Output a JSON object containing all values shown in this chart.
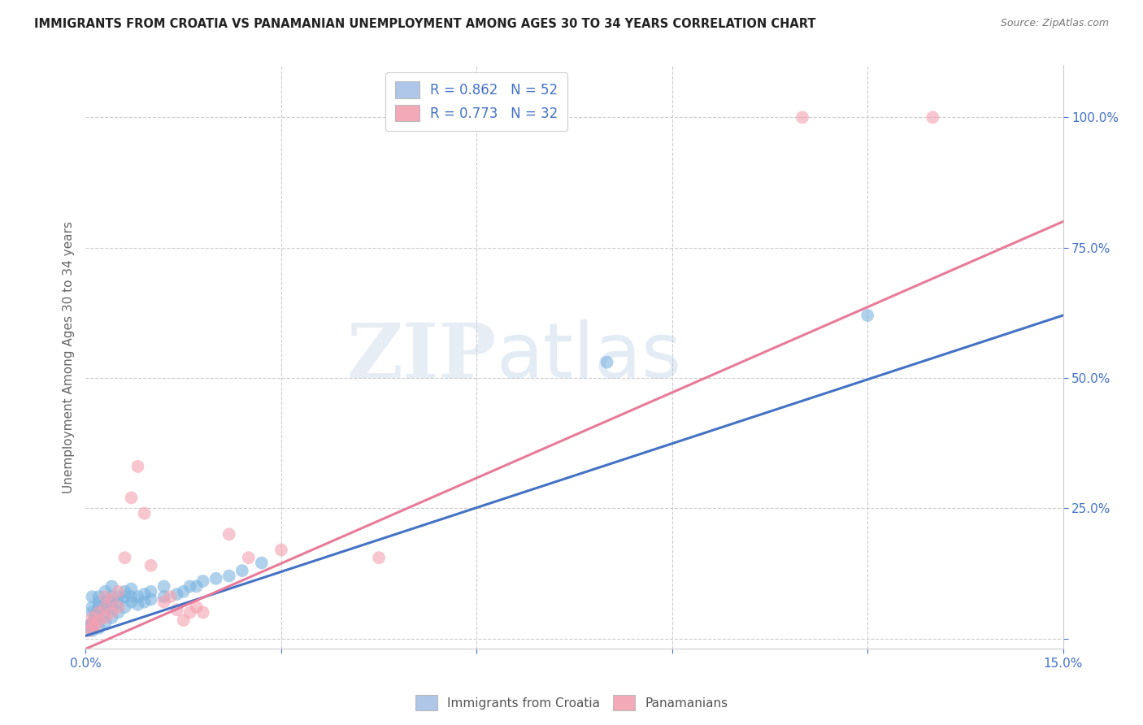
{
  "title": "IMMIGRANTS FROM CROATIA VS PANAMANIAN UNEMPLOYMENT AMONG AGES 30 TO 34 YEARS CORRELATION CHART",
  "source": "Source: ZipAtlas.com",
  "ylabel": "Unemployment Among Ages 30 to 34 years",
  "legend_entries": [
    {
      "label": "R = 0.862   N = 52",
      "color": "#aec6e8"
    },
    {
      "label": "R = 0.773   N = 32",
      "color": "#f4a9b8"
    }
  ],
  "watermark_zip": "ZIP",
  "watermark_atlas": "atlas",
  "blue_scatter": [
    [
      0.0005,
      0.02
    ],
    [
      0.0005,
      0.025
    ],
    [
      0.001,
      0.015
    ],
    [
      0.001,
      0.03
    ],
    [
      0.001,
      0.05
    ],
    [
      0.001,
      0.06
    ],
    [
      0.001,
      0.08
    ],
    [
      0.0015,
      0.035
    ],
    [
      0.0015,
      0.045
    ],
    [
      0.002,
      0.02
    ],
    [
      0.002,
      0.04
    ],
    [
      0.002,
      0.06
    ],
    [
      0.002,
      0.07
    ],
    [
      0.002,
      0.08
    ],
    [
      0.003,
      0.03
    ],
    [
      0.003,
      0.05
    ],
    [
      0.003,
      0.06
    ],
    [
      0.003,
      0.07
    ],
    [
      0.003,
      0.09
    ],
    [
      0.004,
      0.04
    ],
    [
      0.004,
      0.06
    ],
    [
      0.004,
      0.07
    ],
    [
      0.004,
      0.08
    ],
    [
      0.004,
      0.1
    ],
    [
      0.005,
      0.05
    ],
    [
      0.005,
      0.07
    ],
    [
      0.005,
      0.08
    ],
    [
      0.006,
      0.06
    ],
    [
      0.006,
      0.08
    ],
    [
      0.006,
      0.09
    ],
    [
      0.007,
      0.07
    ],
    [
      0.007,
      0.08
    ],
    [
      0.007,
      0.095
    ],
    [
      0.008,
      0.065
    ],
    [
      0.008,
      0.08
    ],
    [
      0.009,
      0.07
    ],
    [
      0.009,
      0.085
    ],
    [
      0.01,
      0.075
    ],
    [
      0.01,
      0.09
    ],
    [
      0.012,
      0.08
    ],
    [
      0.012,
      0.1
    ],
    [
      0.014,
      0.085
    ],
    [
      0.015,
      0.09
    ],
    [
      0.016,
      0.1
    ],
    [
      0.017,
      0.1
    ],
    [
      0.018,
      0.11
    ],
    [
      0.02,
      0.115
    ],
    [
      0.022,
      0.12
    ],
    [
      0.024,
      0.13
    ],
    [
      0.027,
      0.145
    ],
    [
      0.08,
      0.53
    ],
    [
      0.12,
      0.62
    ]
  ],
  "pink_scatter": [
    [
      0.0005,
      0.015
    ],
    [
      0.001,
      0.02
    ],
    [
      0.001,
      0.03
    ],
    [
      0.001,
      0.04
    ],
    [
      0.0015,
      0.025
    ],
    [
      0.002,
      0.035
    ],
    [
      0.002,
      0.05
    ],
    [
      0.003,
      0.04
    ],
    [
      0.003,
      0.06
    ],
    [
      0.003,
      0.08
    ],
    [
      0.004,
      0.05
    ],
    [
      0.004,
      0.075
    ],
    [
      0.005,
      0.06
    ],
    [
      0.005,
      0.09
    ],
    [
      0.006,
      0.155
    ],
    [
      0.007,
      0.27
    ],
    [
      0.008,
      0.33
    ],
    [
      0.009,
      0.24
    ],
    [
      0.01,
      0.14
    ],
    [
      0.012,
      0.07
    ],
    [
      0.013,
      0.08
    ],
    [
      0.014,
      0.055
    ],
    [
      0.015,
      0.035
    ],
    [
      0.016,
      0.05
    ],
    [
      0.017,
      0.06
    ],
    [
      0.018,
      0.05
    ],
    [
      0.022,
      0.2
    ],
    [
      0.025,
      0.155
    ],
    [
      0.03,
      0.17
    ],
    [
      0.045,
      0.155
    ],
    [
      0.11,
      1.0
    ],
    [
      0.13,
      1.0
    ]
  ],
  "blue_line_x": [
    0.0,
    0.15
  ],
  "blue_line_y": [
    0.005,
    0.62
  ],
  "pink_line_x": [
    0.0,
    0.15
  ],
  "pink_line_y": [
    -0.02,
    0.8
  ],
  "scatter_size": 130,
  "blue_color": "#7ab3e0",
  "pink_color": "#f4a0b0",
  "blue_line_color": "#4472c4",
  "pink_line_color": "#e87a9a",
  "background_color": "#ffffff",
  "grid_color": "#cccccc",
  "title_color": "#222222",
  "axis_label_color": "#666666",
  "right_tick_color": "#4472c4",
  "bottom_tick_color": "#4472c4",
  "xlim": [
    0.0,
    0.15
  ],
  "ylim": [
    -0.02,
    1.1
  ],
  "x_ticks": [
    0.0,
    0.03,
    0.06,
    0.09,
    0.12,
    0.15
  ],
  "y_ticks": [
    0.0,
    0.25,
    0.5,
    0.75,
    1.0
  ]
}
